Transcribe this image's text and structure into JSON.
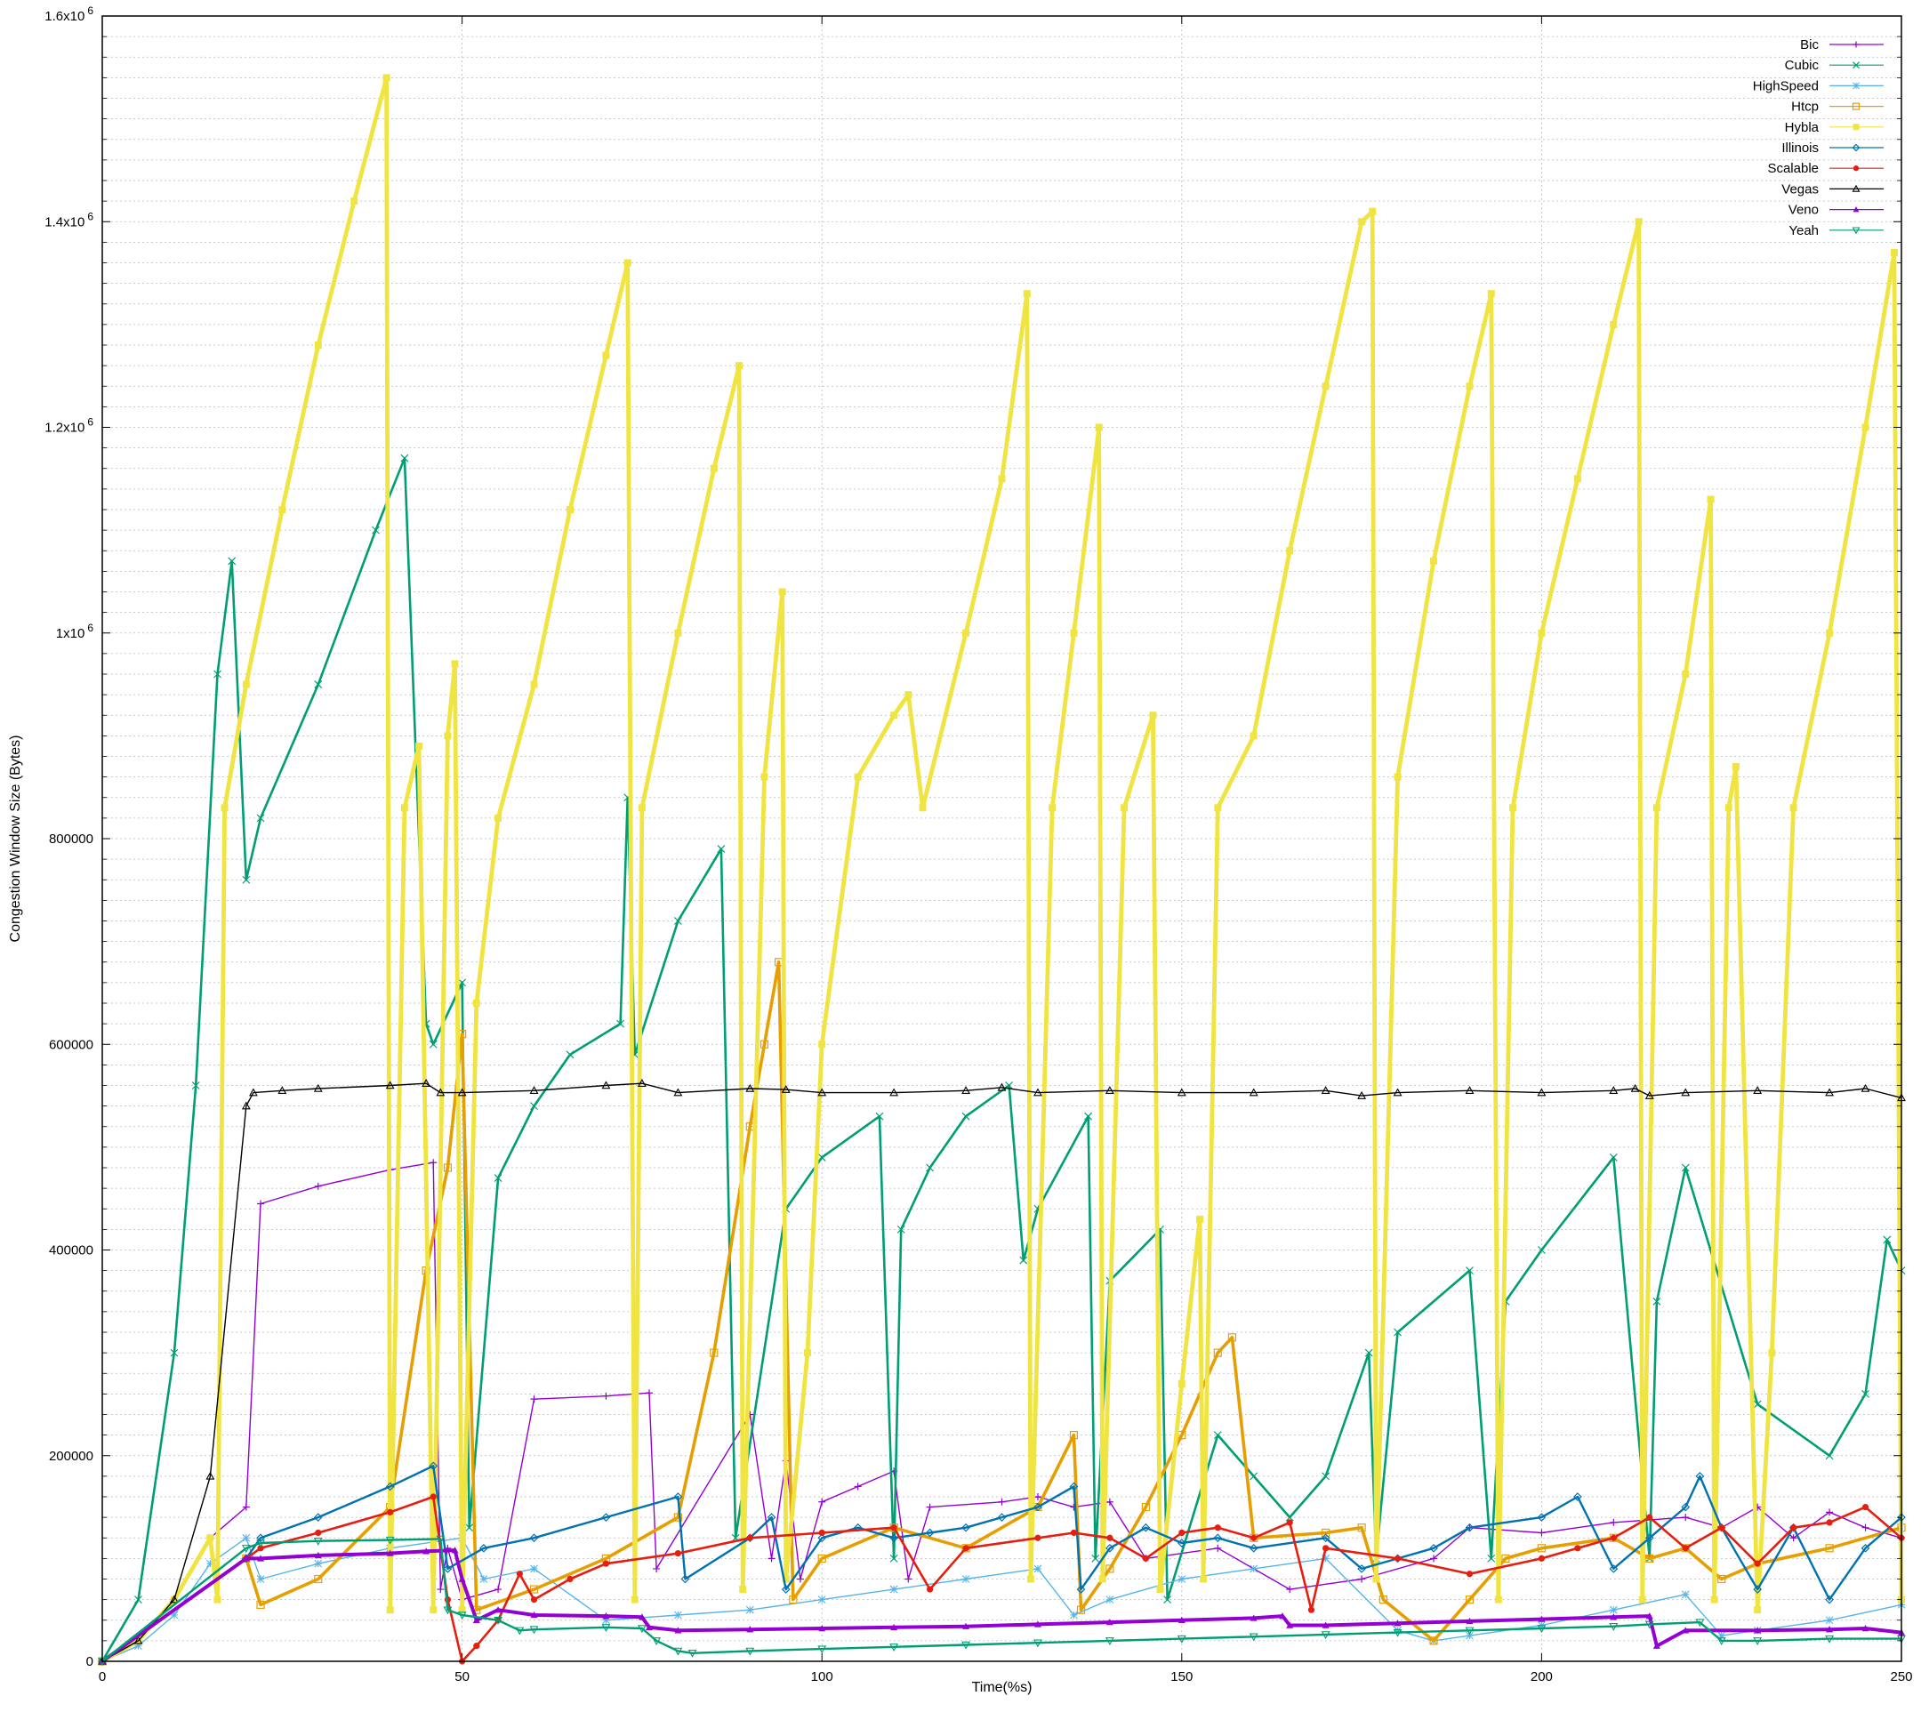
{
  "chart_data": {
    "type": "line",
    "xlabel": "Time(%s)",
    "ylabel": "Congestion Window Size (Bytes)",
    "xlim": [
      0,
      250
    ],
    "ylim": [
      0,
      1600000
    ],
    "grid": true,
    "legend_position": "top-right",
    "x_ticks": [
      {
        "value": 0,
        "label": "0"
      },
      {
        "value": 50,
        "label": "50"
      },
      {
        "value": 100,
        "label": "100"
      },
      {
        "value": 150,
        "label": "150"
      },
      {
        "value": 200,
        "label": "200"
      },
      {
        "value": 250,
        "label": "250"
      }
    ],
    "y_ticks": [
      {
        "value": 0,
        "base": "0",
        "sup": ""
      },
      {
        "value": 200000,
        "base": "200000",
        "sup": ""
      },
      {
        "value": 400000,
        "base": "400000",
        "sup": ""
      },
      {
        "value": 600000,
        "base": "600000",
        "sup": ""
      },
      {
        "value": 800000,
        "base": "800000",
        "sup": ""
      },
      {
        "value": 1000000,
        "base": "1x10",
        "sup": "6"
      },
      {
        "value": 1200000,
        "base": "1.2x10",
        "sup": "6"
      },
      {
        "value": 1400000,
        "base": "1.4x10",
        "sup": "6"
      },
      {
        "value": 1600000,
        "base": "1.6x10",
        "sup": "6"
      }
    ],
    "series": [
      {
        "name": "Bic",
        "color": "#9400d3",
        "marker": "plus",
        "width": 1.4,
        "x": [
          0,
          5,
          10,
          15,
          20,
          22,
          30,
          40,
          46,
          47,
          48,
          50,
          55,
          60,
          70,
          76,
          77,
          90,
          93,
          95,
          97,
          100,
          105,
          110,
          112,
          115,
          125,
          130,
          135,
          140,
          145,
          155,
          165,
          175,
          185,
          190,
          200,
          210,
          220,
          225,
          230,
          235,
          240,
          245,
          250
        ],
        "y": [
          0,
          20000,
          60000,
          120000,
          150000,
          445000,
          462000,
          478000,
          485000,
          70000,
          110000,
          60000,
          70000,
          255000,
          258000,
          261000,
          90000,
          240000,
          100000,
          195000,
          80000,
          155000,
          170000,
          185000,
          80000,
          150000,
          155000,
          160000,
          150000,
          155000,
          100000,
          110000,
          70000,
          80000,
          100000,
          130000,
          125000,
          135000,
          140000,
          130000,
          150000,
          120000,
          145000,
          130000,
          120000
        ]
      },
      {
        "name": "Cubic",
        "color": "#009e73",
        "marker": "x",
        "width": 2.6,
        "x": [
          0,
          5,
          10,
          13,
          16,
          18,
          20,
          22,
          30,
          38,
          42,
          45,
          46,
          50,
          51,
          55,
          60,
          65,
          72,
          73,
          74,
          80,
          86,
          88,
          95,
          100,
          108,
          110,
          111,
          115,
          120,
          126,
          128,
          130,
          137,
          138,
          140,
          147,
          148,
          155,
          160,
          165,
          170,
          176,
          177,
          180,
          190,
          193,
          195,
          200,
          210,
          215,
          216,
          220,
          230,
          240,
          245,
          248,
          250
        ],
        "y": [
          0,
          60000,
          300000,
          560000,
          960000,
          1070000,
          760000,
          820000,
          950000,
          1100000,
          1170000,
          620000,
          600000,
          660000,
          130000,
          470000,
          540000,
          590000,
          620000,
          840000,
          590000,
          720000,
          790000,
          120000,
          440000,
          490000,
          530000,
          100000,
          420000,
          480000,
          530000,
          560000,
          390000,
          440000,
          530000,
          100000,
          370000,
          420000,
          60000,
          220000,
          180000,
          140000,
          180000,
          300000,
          100000,
          320000,
          380000,
          100000,
          350000,
          400000,
          490000,
          100000,
          350000,
          480000,
          250000,
          200000,
          260000,
          410000,
          380000
        ]
      },
      {
        "name": "HighSpeed",
        "color": "#56b4e9",
        "marker": "star",
        "width": 1.4,
        "x": [
          0,
          5,
          10,
          15,
          20,
          22,
          30,
          40,
          50,
          53,
          60,
          70,
          80,
          90,
          100,
          110,
          120,
          130,
          135,
          140,
          150,
          160,
          170,
          180,
          185,
          190,
          200,
          210,
          220,
          225,
          230,
          240,
          250
        ],
        "y": [
          0,
          15000,
          45000,
          95000,
          120000,
          80000,
          95000,
          110000,
          120000,
          80000,
          90000,
          40000,
          45000,
          50000,
          60000,
          70000,
          80000,
          90000,
          45000,
          60000,
          80000,
          90000,
          100000,
          30000,
          20000,
          25000,
          35000,
          50000,
          65000,
          25000,
          30000,
          40000,
          55000
        ]
      },
      {
        "name": "Htcp",
        "color": "#e69f00",
        "marker": "square",
        "width": 3.6,
        "x": [
          0,
          20,
          22,
          30,
          40,
          45,
          48,
          50,
          52,
          60,
          70,
          80,
          85,
          90,
          92,
          94,
          96,
          100,
          110,
          120,
          130,
          135,
          136,
          140,
          145,
          150,
          155,
          157,
          160,
          170,
          175,
          178,
          185,
          190,
          195,
          200,
          210,
          215,
          220,
          225,
          230,
          240,
          250
        ],
        "y": [
          0,
          100000,
          55000,
          80000,
          150000,
          380000,
          480000,
          610000,
          50000,
          70000,
          100000,
          140000,
          300000,
          520000,
          600000,
          680000,
          60000,
          100000,
          130000,
          110000,
          150000,
          220000,
          50000,
          90000,
          150000,
          220000,
          300000,
          315000,
          120000,
          125000,
          130000,
          60000,
          20000,
          60000,
          100000,
          110000,
          120000,
          100000,
          110000,
          80000,
          95000,
          110000,
          130000
        ]
      },
      {
        "name": "Hybla",
        "color": "#f0e442",
        "marker": "filledsquare",
        "width": 4.8,
        "x": [
          0,
          5,
          10,
          15,
          16,
          17,
          20,
          25,
          30,
          35,
          39.5,
          40,
          42,
          44,
          46,
          48,
          49,
          50,
          52,
          55,
          60,
          65,
          70,
          73,
          74,
          75,
          80,
          85,
          88.5,
          89,
          92,
          94.5,
          95,
          98,
          100,
          105,
          110,
          112,
          114,
          120,
          125,
          128.5,
          129,
          132,
          135,
          138.5,
          139,
          142,
          146,
          147,
          150,
          152.5,
          153,
          155,
          160,
          165,
          170,
          175,
          176.5,
          177,
          180,
          185,
          190,
          193,
          194,
          196,
          200,
          205,
          210,
          213.5,
          214,
          216,
          220,
          223.5,
          224,
          226,
          227,
          230,
          232,
          235,
          240,
          245,
          249,
          250
        ],
        "y": [
          0,
          20000,
          60000,
          120000,
          60000,
          830000,
          950000,
          1120000,
          1280000,
          1420000,
          1540000,
          50000,
          830000,
          890000,
          50000,
          900000,
          970000,
          50000,
          640000,
          820000,
          950000,
          1120000,
          1270000,
          1360000,
          60000,
          830000,
          1000000,
          1160000,
          1260000,
          70000,
          860000,
          1040000,
          80000,
          300000,
          600000,
          860000,
          920000,
          940000,
          830000,
          1000000,
          1150000,
          1330000,
          80000,
          830000,
          1000000,
          1200000,
          80000,
          830000,
          920000,
          70000,
          270000,
          430000,
          80000,
          830000,
          900000,
          1080000,
          1240000,
          1400000,
          1410000,
          80000,
          860000,
          1070000,
          1240000,
          1330000,
          60000,
          830000,
          1000000,
          1150000,
          1300000,
          1400000,
          60000,
          830000,
          960000,
          1130000,
          60000,
          830000,
          870000,
          50000,
          300000,
          830000,
          1000000,
          1200000,
          1370000,
          60000
        ]
      },
      {
        "name": "Illinois",
        "color": "#0072b2",
        "marker": "diamond",
        "width": 2.4,
        "x": [
          0,
          20,
          22,
          30,
          40,
          46,
          48,
          53,
          60,
          70,
          80,
          81,
          90,
          93,
          95,
          100,
          105,
          110,
          115,
          120,
          125,
          130,
          135,
          136,
          140,
          145,
          150,
          155,
          160,
          170,
          175,
          180,
          185,
          190,
          200,
          205,
          210,
          215,
          220,
          222,
          225,
          230,
          235,
          240,
          245,
          250
        ],
        "y": [
          0,
          100000,
          120000,
          140000,
          170000,
          190000,
          90000,
          110000,
          120000,
          140000,
          160000,
          80000,
          120000,
          140000,
          70000,
          120000,
          130000,
          120000,
          125000,
          130000,
          140000,
          150000,
          170000,
          70000,
          110000,
          130000,
          115000,
          120000,
          110000,
          120000,
          90000,
          100000,
          110000,
          130000,
          140000,
          160000,
          90000,
          120000,
          150000,
          180000,
          130000,
          70000,
          130000,
          60000,
          110000,
          140000
        ]
      },
      {
        "name": "Scalable",
        "color": "#e51e10",
        "marker": "filledcircle",
        "width": 2.6,
        "x": [
          0,
          20,
          22,
          30,
          40,
          46,
          48,
          50,
          52,
          55,
          58,
          60,
          65,
          70,
          80,
          90,
          100,
          110,
          115,
          120,
          130,
          135,
          140,
          145,
          150,
          155,
          160,
          165,
          168,
          170,
          180,
          190,
          200,
          205,
          210,
          215,
          220,
          225,
          230,
          235,
          240,
          245,
          250
        ],
        "y": [
          0,
          100000,
          110000,
          125000,
          145000,
          160000,
          60000,
          0,
          15000,
          40000,
          85000,
          60000,
          80000,
          95000,
          105000,
          120000,
          125000,
          130000,
          70000,
          110000,
          120000,
          125000,
          120000,
          100000,
          125000,
          130000,
          120000,
          135000,
          50000,
          110000,
          100000,
          85000,
          100000,
          110000,
          120000,
          140000,
          110000,
          130000,
          95000,
          130000,
          135000,
          150000,
          120000
        ]
      },
      {
        "name": "Vegas",
        "color": "#000000",
        "marker": "triangle",
        "width": 1.4,
        "x": [
          0,
          5,
          10,
          15,
          20,
          21,
          25,
          30,
          40,
          45,
          47,
          50,
          60,
          70,
          75,
          80,
          90,
          95,
          100,
          110,
          120,
          125,
          130,
          140,
          150,
          160,
          170,
          175,
          180,
          190,
          200,
          210,
          213,
          215,
          220,
          230,
          240,
          245,
          250
        ],
        "y": [
          0,
          20000,
          60000,
          180000,
          540000,
          553000,
          555000,
          557000,
          560000,
          562000,
          553000,
          553000,
          555000,
          560000,
          562000,
          553000,
          557000,
          556000,
          553000,
          553000,
          555000,
          558000,
          553000,
          555000,
          553000,
          553000,
          555000,
          550000,
          553000,
          555000,
          553000,
          555000,
          557000,
          550000,
          553000,
          555000,
          553000,
          557000,
          548000
        ]
      },
      {
        "name": "Veno",
        "color": "#9400d3",
        "marker": "filledtriangle",
        "width": 4.0,
        "x": [
          0,
          20,
          22,
          30,
          40,
          45,
          49,
          50,
          52,
          55,
          60,
          70,
          75,
          76,
          80,
          90,
          100,
          110,
          120,
          130,
          140,
          150,
          160,
          164,
          165,
          170,
          180,
          190,
          200,
          210,
          215,
          216,
          220,
          230,
          240,
          245,
          250
        ],
        "y": [
          0,
          100000,
          100000,
          103000,
          105000,
          107000,
          108000,
          80000,
          40000,
          50000,
          45000,
          44000,
          43000,
          33000,
          30000,
          31000,
          32000,
          33000,
          34000,
          36000,
          38000,
          40000,
          42000,
          44000,
          35000,
          35000,
          37000,
          39000,
          41000,
          43000,
          44000,
          15000,
          30000,
          30000,
          31000,
          32000,
          28000
        ]
      },
      {
        "name": "Yeah",
        "color": "#009e73",
        "marker": "invtriangle",
        "width": 2.4,
        "x": [
          0,
          20,
          22,
          30,
          40,
          47,
          48,
          50,
          55,
          58,
          60,
          70,
          75,
          77,
          80,
          82,
          90,
          100,
          110,
          120,
          130,
          140,
          150,
          160,
          170,
          180,
          190,
          200,
          210,
          215,
          222,
          225,
          230,
          240,
          250
        ],
        "y": [
          0,
          110000,
          115000,
          117000,
          118000,
          119000,
          50000,
          45000,
          40000,
          30000,
          31000,
          33000,
          32000,
          20000,
          10000,
          8000,
          10000,
          12000,
          14000,
          16000,
          18000,
          20000,
          22000,
          24000,
          26000,
          28000,
          30000,
          32000,
          34000,
          36000,
          38000,
          20000,
          20000,
          22000,
          22000
        ]
      }
    ]
  }
}
